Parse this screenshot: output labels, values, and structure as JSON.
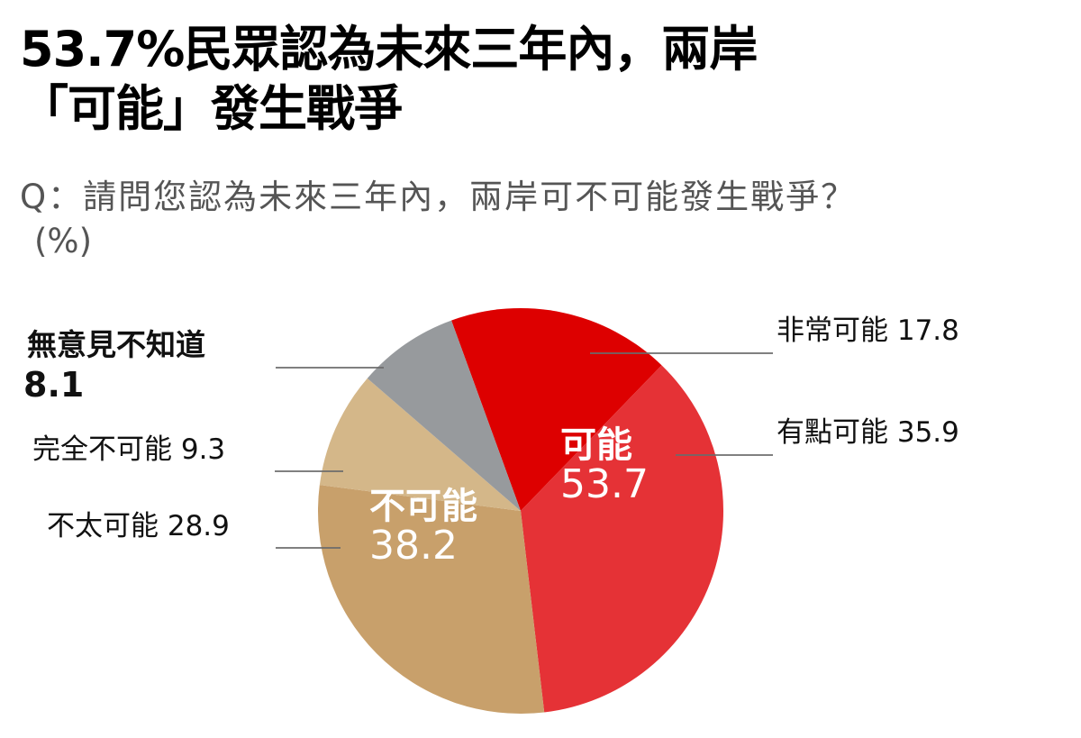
{
  "title": {
    "line1": "53.7%民眾認為未來三年內，兩岸",
    "line2": "「可能」發生戰爭"
  },
  "question": "Q：請問您認為未來三年內，兩岸可不可能發生戰爭？",
  "unit": "(%)",
  "groups": {
    "possible": {
      "label": "可能",
      "value": "53.7"
    },
    "impossible": {
      "label": "不可能",
      "value": "38.2"
    }
  },
  "labels": {
    "very_possible": "非常可能 17.8",
    "somewhat_possible": "有點可能 35.9",
    "not_very_possible": "不太可能 28.9",
    "totally_impossible": "完全不可能 9.3",
    "no_opinion_name": "無意見不知道",
    "no_opinion_value": "8.1"
  },
  "chart_data": {
    "type": "pie",
    "title": "53.7%民眾認為未來三年內，兩岸「可能」發生戰爭",
    "subtitle": "Q：請問您認為未來三年內，兩岸可不可能發生戰爭？(%)",
    "unit": "%",
    "start_angle_deg": 340,
    "direction": "clockwise",
    "categories": [
      "非常可能",
      "有點可能",
      "不太可能",
      "完全不可能",
      "無意見不知道"
    ],
    "values": [
      17.8,
      35.9,
      28.9,
      9.3,
      8.1
    ],
    "colors": [
      "#DD0000",
      "#E53236",
      "#C8A06B",
      "#D4B789",
      "#979A9D"
    ],
    "groups": [
      {
        "name": "可能",
        "value": 53.7,
        "members": [
          "非常可能",
          "有點可能"
        ]
      },
      {
        "name": "不可能",
        "value": 38.2,
        "members": [
          "不太可能",
          "完全不可能"
        ]
      }
    ],
    "legend": "leader-line labels"
  }
}
